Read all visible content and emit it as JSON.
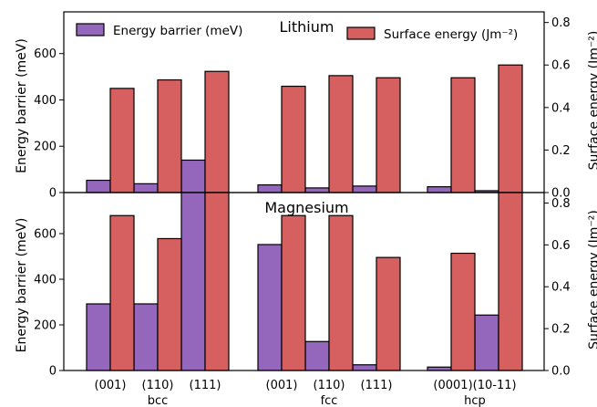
{
  "chart_data": {
    "type": "bar",
    "legend": {
      "placement": "top",
      "entries": [
        {
          "series": "barrier",
          "label": "Energy barrier (meV)"
        },
        {
          "series": "surface",
          "label": "Surface energy (Jm⁻²)"
        }
      ]
    },
    "colors": {
      "barrier": "#9467bd",
      "surface": "#d65f5f"
    },
    "groups": [
      {
        "label": "bcc",
        "facets": [
          "(001)",
          "(110)",
          "(111)"
        ]
      },
      {
        "label": "fcc",
        "facets": [
          "(001)",
          "(110)",
          "(111)"
        ]
      },
      {
        "label": "hcp",
        "facets": [
          "(0001)",
          "(10-11)"
        ]
      }
    ],
    "facet_label_text": [
      "(001)",
      "(110)",
      "(111)",
      "(001)",
      "(110)",
      "(111)",
      "(0001)(10-11)"
    ],
    "panels": [
      {
        "title": "Lithium",
        "ylabel_left": "Energy barrier (meV)",
        "ylabel_right": "Surface energy (Jm⁻²)",
        "ylim_left": [
          0,
          780
        ],
        "ylim_right": [
          0,
          0.85
        ],
        "yticks_left": [
          0,
          200,
          400,
          600
        ],
        "yticks_right": [
          0.0,
          0.2,
          0.4,
          0.6,
          0.8
        ],
        "barrier": [
          53,
          38,
          140,
          33,
          20,
          28,
          25,
          8
        ],
        "surface": [
          0.49,
          0.53,
          0.57,
          0.5,
          0.55,
          0.54,
          0.54,
          0.6
        ]
      },
      {
        "title": "Magnesium",
        "ylabel_left": "Energy barrier (meV)",
        "ylabel_right": "Surface energy (Jm⁻²)",
        "ylim_left": [
          0,
          780
        ],
        "ylim_right": [
          0,
          0.85
        ],
        "yticks_left": [
          0,
          200,
          400,
          600
        ],
        "yticks_right": [
          0.0,
          0.2,
          0.4,
          0.6,
          0.8
        ],
        "barrier": [
          292,
          292,
          780,
          552,
          127,
          25,
          15,
          243
        ],
        "surface": [
          0.74,
          0.63,
          0.85,
          0.74,
          0.74,
          0.54,
          0.56,
          0.85
        ]
      }
    ]
  }
}
